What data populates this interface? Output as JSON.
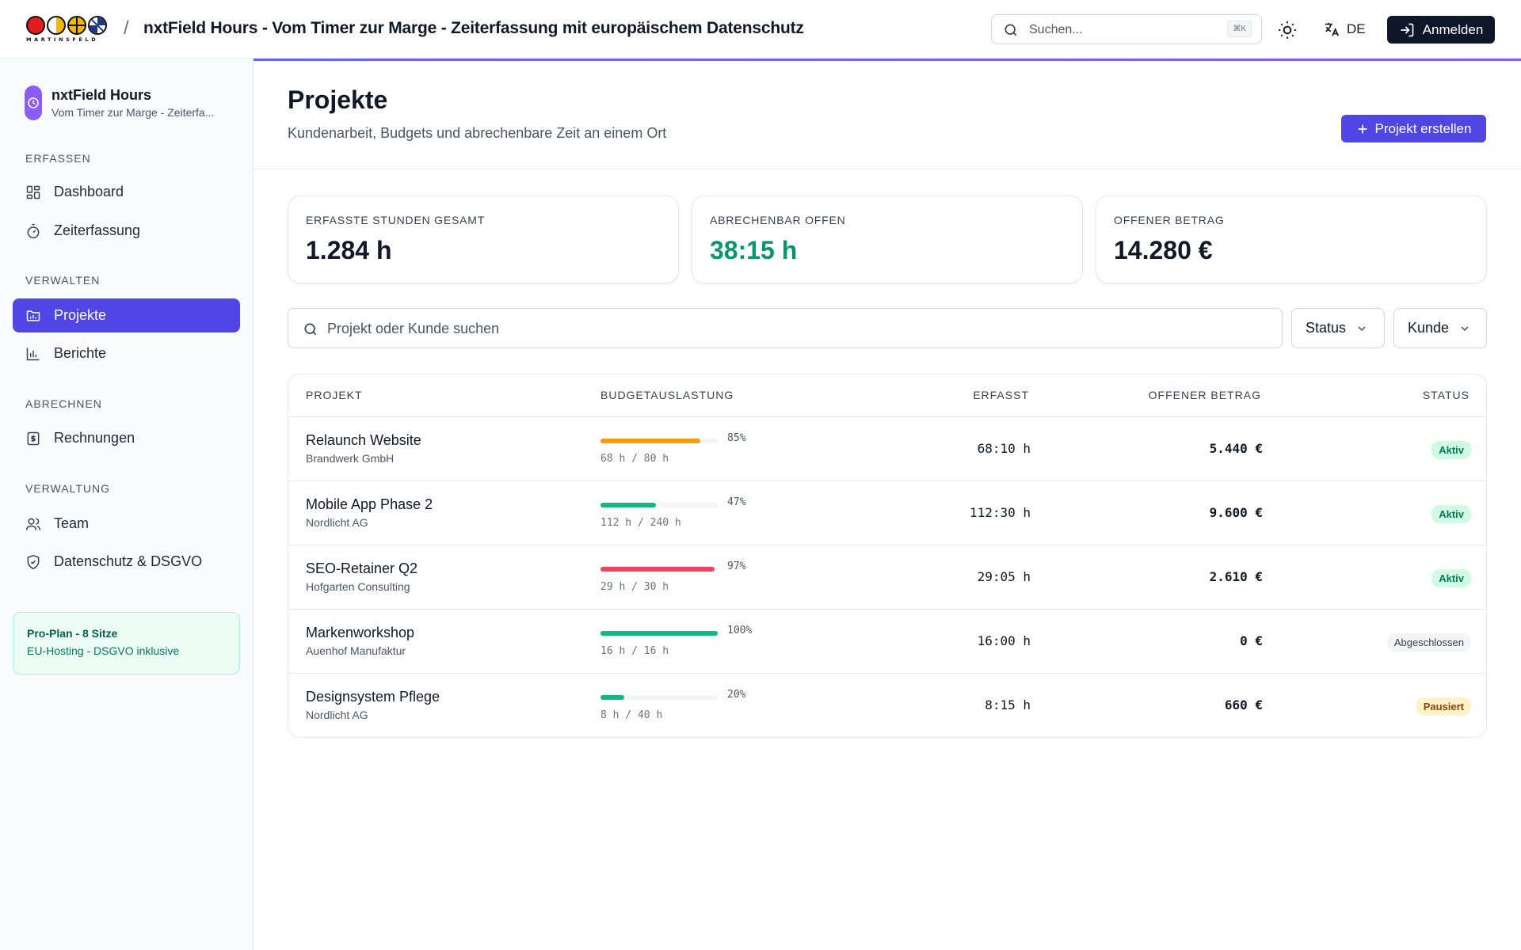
{
  "header": {
    "logo_text": "MARTINSFELD",
    "separator": "/",
    "title": "nxtField Hours - Vom Timer zur Marge - Zeiterfassung mit europäischem Datenschutz",
    "search_placeholder": "Suchen...",
    "search_shortcut": "⌘K",
    "language": "DE",
    "login_label": "Anmelden"
  },
  "sidebar": {
    "brand_name": "nxtField Hours",
    "brand_sub": "Vom Timer zur Marge - Zeiterfa...",
    "sections": [
      {
        "label": "ERFASSEN",
        "items": [
          {
            "label": "Dashboard",
            "icon": "grid-icon"
          },
          {
            "label": "Zeiterfassung",
            "icon": "stopwatch-icon"
          }
        ]
      },
      {
        "label": "VERWALTEN",
        "items": [
          {
            "label": "Projekte",
            "icon": "folder-chart-icon",
            "active": true
          },
          {
            "label": "Berichte",
            "icon": "bar-chart-icon"
          }
        ]
      },
      {
        "label": "ABRECHNEN",
        "items": [
          {
            "label": "Rechnungen",
            "icon": "receipt-icon"
          }
        ]
      },
      {
        "label": "VERWALTUNG",
        "items": [
          {
            "label": "Team",
            "icon": "users-icon"
          },
          {
            "label": "Datenschutz & DSGVO",
            "icon": "shield-check-icon"
          }
        ]
      }
    ],
    "plan": {
      "title": "Pro-Plan - 8 Sitze",
      "sub": "EU-Hosting - DSGVO inklusive"
    }
  },
  "page": {
    "title": "Projekte",
    "subtitle": "Kundenarbeit, Budgets und abrechenbare Zeit an einem Ort",
    "create_label": "Projekt erstellen"
  },
  "kpis": [
    {
      "label": "ERFASSTE STUNDEN GESAMT",
      "value": "1.284 h"
    },
    {
      "label": "ABRECHENBAR OFFEN",
      "value": "38:15 h"
    },
    {
      "label": "OFFENER BETRAG",
      "value": "14.280 €"
    }
  ],
  "filters": {
    "search_placeholder": "Projekt oder Kunde suchen",
    "status_label": "Status",
    "client_label": "Kunde"
  },
  "table": {
    "headers": [
      "PROJEKT",
      "BUDGETAUSLASTUNG",
      "ERFASST",
      "OFFENER BETRAG",
      "STATUS"
    ],
    "rows": [
      {
        "name": "Relaunch Website",
        "client": "Brandwerk GmbH",
        "usage": 0.85,
        "pct": "85%",
        "hours": "68 h / 80 h",
        "tracked": "68:10 h",
        "amount": "5.440 €",
        "status": "Aktiv",
        "bar_color": "#f59e0b"
      },
      {
        "name": "Mobile App Phase 2",
        "client": "Nordlicht AG",
        "usage": 0.47,
        "pct": "47%",
        "hours": "112 h / 240 h",
        "tracked": "112:30 h",
        "amount": "9.600 €",
        "status": "Aktiv",
        "bar_color": "#10b981"
      },
      {
        "name": "SEO-Retainer Q2",
        "client": "Hofgarten Consulting",
        "usage": 0.97,
        "pct": "97%",
        "hours": "29 h / 30 h",
        "tracked": "29:05 h",
        "amount": "2.610 €",
        "status": "Aktiv",
        "bar_color": "#f43f5e"
      },
      {
        "name": "Markenworkshop",
        "client": "Auenhof Manufaktur",
        "usage": 1.0,
        "pct": "100%",
        "hours": "16 h / 16 h",
        "tracked": "16:00 h",
        "amount": "0 €",
        "status": "Abgeschlossen",
        "bar_color": "#10b981"
      },
      {
        "name": "Designsystem Pflege",
        "client": "Nordlicht AG",
        "usage": 0.2,
        "pct": "20%",
        "hours": "8 h / 40 h",
        "tracked": "8:15 h",
        "amount": "660 €",
        "status": "Pausiert",
        "bar_color": "#10b981"
      }
    ]
  },
  "colors": {
    "accent": "#4f46e5",
    "green": "#059669",
    "dark": "#0f172a"
  }
}
